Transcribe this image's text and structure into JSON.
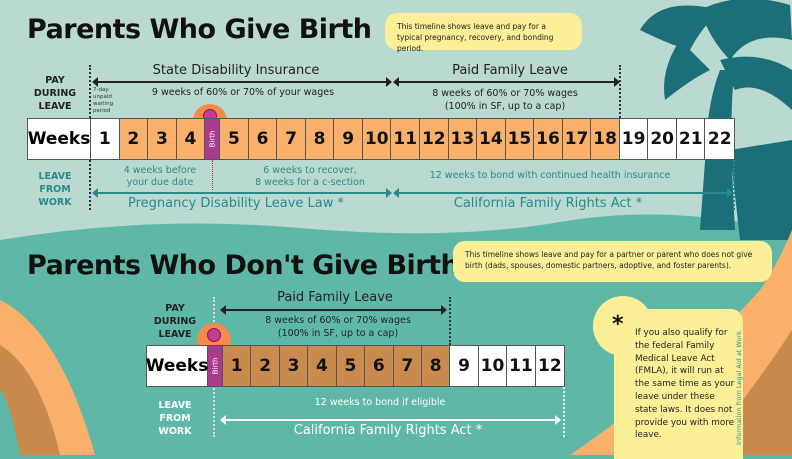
{
  "colors": {
    "top_bg": "#b9d9d1",
    "bottom_bg": "#5fb8a7",
    "paid_orange": "#f9b06b",
    "paid_brown": "#c98a4e",
    "birth_purple": "#a93a8d",
    "note_yellow": "#fbef98",
    "palm_teal": "#1c6f78"
  },
  "section1": {
    "title": "Parents Who Give Birth",
    "note": "This timeline shows leave and pay for a typical pregnancy, recovery, and bonding period.",
    "pay_label": "PAY\nDURING\nLEAVE",
    "leave_label": "LEAVE\nFROM\nWORK",
    "waiting": "7-day unpaid waiting period",
    "sdi_title": "State Disability Insurance",
    "sdi_text": "9 weeks of 60% or 70% of your wages",
    "pfl_title": "Paid Family Leave",
    "pfl_text1": "8 weeks of 60% or 70% wages",
    "pfl_text2": "(100% in SF, up to a cap)",
    "weeks_label": "Weeks",
    "birth_label": "Birth",
    "weeks": [
      "1",
      "2",
      "3",
      "4",
      "Birth",
      "5",
      "6",
      "7",
      "8",
      "9",
      "10",
      "11",
      "12",
      "13",
      "14",
      "15",
      "16",
      "17",
      "18",
      "19",
      "20",
      "21",
      "22"
    ],
    "paid_weeks": [
      "2",
      "3",
      "4",
      "5",
      "6",
      "7",
      "8",
      "9",
      "10",
      "11",
      "12",
      "13",
      "14",
      "15",
      "16",
      "17",
      "18"
    ],
    "before": "4 weeks before\nyour due date",
    "recover": "6 weeks to recover,\n8 weeks for a c-section",
    "bond": "12 weeks to bond with continued health insurance",
    "pdl": "Pregnancy Disability Leave Law *",
    "cfra": "California Family Rights Act *"
  },
  "section2": {
    "title": "Parents Who Don't Give Birth",
    "note": "This timeline shows leave and pay for a partner or parent who does not give birth (dads, spouses, domestic partners, adoptive, and foster parents).",
    "pay_label": "PAY\nDURING\nLEAVE",
    "leave_label": "LEAVE\nFROM\nWORK",
    "pfl_title": "Paid Family Leave",
    "pfl_text1": "8 weeks of 60% or 70% wages",
    "pfl_text2": "(100% in SF, up to a cap)",
    "weeks_label": "Weeks",
    "weeks": [
      "Birth",
      "1",
      "2",
      "3",
      "4",
      "5",
      "6",
      "7",
      "8",
      "9",
      "10",
      "11",
      "12"
    ],
    "paid_weeks": [
      "1",
      "2",
      "3",
      "4",
      "5",
      "6",
      "7",
      "8"
    ],
    "bond": "12 weeks to bond if eligible",
    "cfra": "California Family Rights Act *"
  },
  "fmla": {
    "asterisk": "*",
    "text": "If you also qualify for the federal Family Medical Leave Act (FMLA), it will run at the same time as your leave under these state laws. It does not provide you with more leave.",
    "credit": "Information from Legal Aid at Work."
  }
}
